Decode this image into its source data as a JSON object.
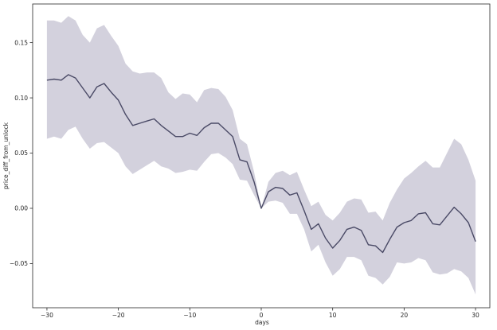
{
  "chart_data": {
    "type": "line",
    "title": "",
    "xlabel": "days",
    "ylabel": "price_diff_from_unlock",
    "xlim": [
      -32,
      32
    ],
    "ylim": [
      -0.09,
      0.185
    ],
    "xticks": [
      -30,
      -20,
      -10,
      0,
      10,
      20,
      30
    ],
    "yticks": [
      -0.05,
      0.0,
      0.05,
      0.1,
      0.15
    ],
    "xtick_labels": [
      "−30",
      "−20",
      "−10",
      "0",
      "10",
      "20",
      "30"
    ],
    "ytick_labels": [
      "−0.05",
      "0.00",
      "0.05",
      "0.10",
      "0.15"
    ],
    "grid": false,
    "legend": "none",
    "colors": {
      "line": "#4a4a66",
      "band": "#b5b3c6",
      "axis": "#262626"
    },
    "series": [
      {
        "x": [
          -30,
          -29,
          -28,
          -27,
          -26,
          -25,
          -24,
          -23,
          -22,
          -21,
          -20,
          -19,
          -18,
          -17,
          -16,
          -15,
          -14,
          -13,
          -12,
          -11,
          -10,
          -9,
          -8,
          -7,
          -6,
          -5,
          -4,
          -3,
          -2,
          -1,
          0,
          1,
          2,
          3,
          4,
          5,
          6,
          7,
          8,
          9,
          10,
          11,
          12,
          13,
          14,
          15,
          16,
          17,
          18,
          19,
          20,
          21,
          22,
          23,
          24,
          25,
          26,
          27,
          28,
          29,
          30
        ],
        "mean": [
          0.116,
          0.117,
          0.116,
          0.121,
          0.118,
          0.109,
          0.1,
          0.11,
          0.113,
          0.105,
          0.098,
          0.085,
          0.075,
          0.077,
          0.079,
          0.081,
          0.075,
          0.07,
          0.065,
          0.065,
          0.068,
          0.066,
          0.073,
          0.077,
          0.077,
          0.071,
          0.065,
          0.044,
          0.042,
          0.024,
          0.0,
          0.015,
          0.019,
          0.018,
          0.012,
          0.014,
          -0.002,
          -0.019,
          -0.014,
          -0.027,
          -0.036,
          -0.029,
          -0.019,
          -0.017,
          -0.02,
          -0.033,
          -0.034,
          -0.04,
          -0.028,
          -0.017,
          -0.013,
          -0.011,
          -0.005,
          -0.004,
          -0.014,
          -0.015,
          -0.007,
          0.001,
          -0.005,
          -0.013,
          -0.03
        ],
        "lower": [
          0.063,
          0.065,
          0.063,
          0.071,
          0.074,
          0.063,
          0.054,
          0.059,
          0.06,
          0.055,
          0.05,
          0.038,
          0.031,
          0.035,
          0.039,
          0.043,
          0.038,
          0.036,
          0.032,
          0.033,
          0.035,
          0.034,
          0.042,
          0.049,
          0.05,
          0.046,
          0.04,
          0.026,
          0.025,
          0.012,
          0.0,
          0.006,
          0.007,
          0.005,
          -0.005,
          -0.005,
          -0.019,
          -0.039,
          -0.033,
          -0.049,
          -0.061,
          -0.055,
          -0.044,
          -0.044,
          -0.047,
          -0.061,
          -0.063,
          -0.069,
          -0.062,
          -0.049,
          -0.05,
          -0.049,
          -0.045,
          -0.047,
          -0.058,
          -0.06,
          -0.059,
          -0.055,
          -0.057,
          -0.063,
          -0.078
        ],
        "upper": [
          0.17,
          0.17,
          0.168,
          0.174,
          0.17,
          0.157,
          0.15,
          0.163,
          0.166,
          0.156,
          0.147,
          0.131,
          0.124,
          0.122,
          0.123,
          0.123,
          0.118,
          0.105,
          0.099,
          0.104,
          0.103,
          0.096,
          0.107,
          0.109,
          0.108,
          0.101,
          0.089,
          0.063,
          0.058,
          0.033,
          0.0,
          0.024,
          0.032,
          0.034,
          0.03,
          0.033,
          0.017,
          0.002,
          0.006,
          -0.006,
          -0.011,
          -0.004,
          0.006,
          0.009,
          0.008,
          -0.004,
          -0.003,
          -0.011,
          0.005,
          0.017,
          0.027,
          0.032,
          0.038,
          0.043,
          0.037,
          0.037,
          0.05,
          0.063,
          0.058,
          0.044,
          0.025
        ]
      }
    ]
  }
}
